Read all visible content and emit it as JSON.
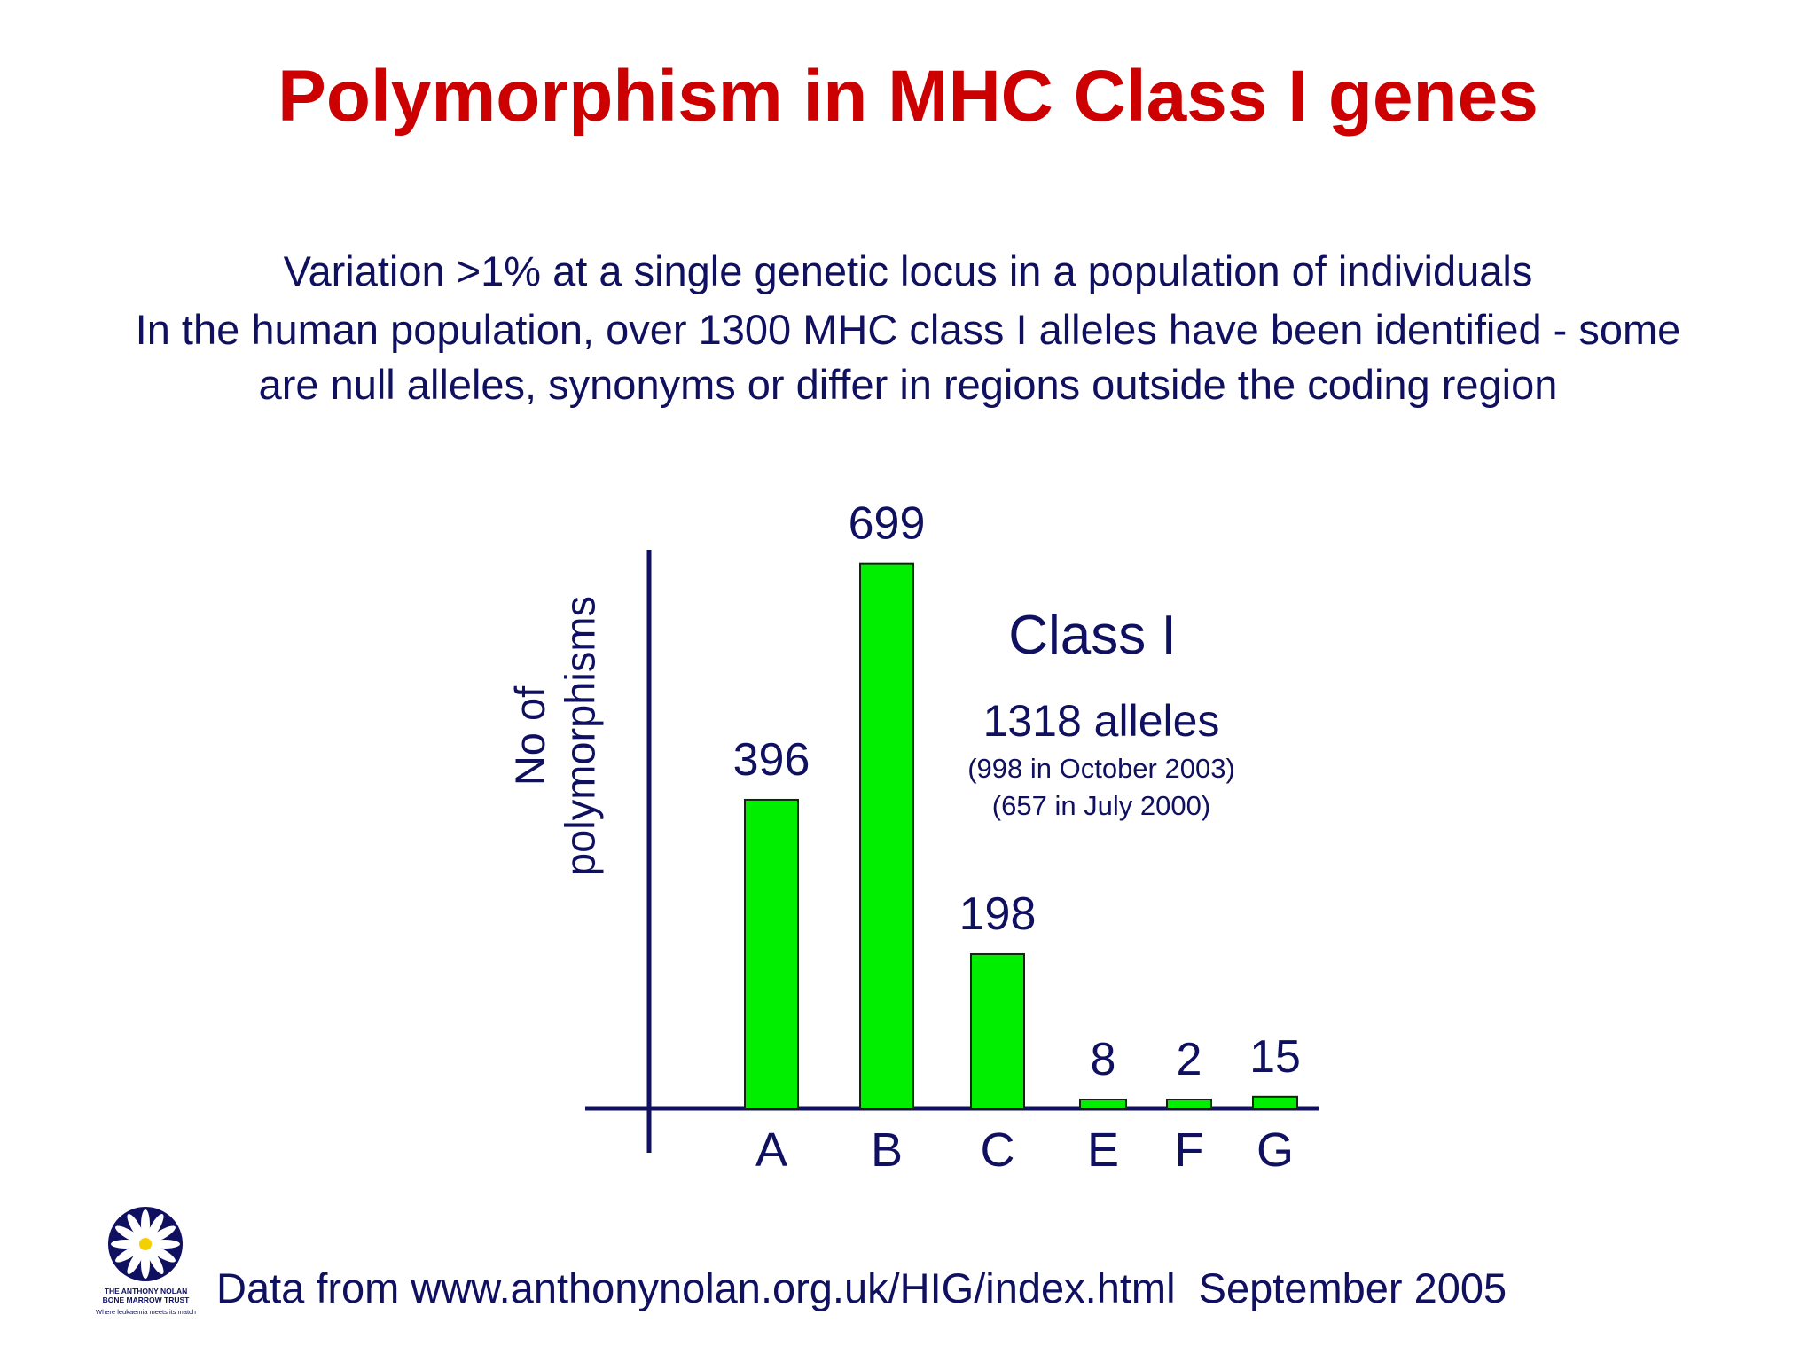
{
  "slide": {
    "title": "Polymorphism in MHC Class I genes",
    "description": [
      "Variation >1% at a single genetic locus in a population of individuals",
      "In the human population, over 1300 MHC class I alleles have been identified - some",
      "are null alleles, synonyms or differ in regions outside the coding region"
    ],
    "footer": "Data from www.anthonynolan.org.uk/HIG/index.html  September 2005",
    "logo": {
      "lines": [
        "THE ANTHONY NOLAN",
        "BONE MARROW TRUST"
      ],
      "tagline": "Where leukaemia meets its match"
    }
  },
  "chart_data": {
    "type": "bar",
    "categories": [
      "A",
      "B",
      "C",
      "E",
      "F",
      "G"
    ],
    "values": [
      396,
      699,
      198,
      8,
      2,
      15
    ],
    "ylabel": [
      "No of",
      "polymorphisms"
    ],
    "ylim": [
      0,
      710
    ],
    "grid": false,
    "annotation": {
      "heading": "Class I",
      "total": "1318 alleles",
      "notes": [
        "(998 in October 2003)",
        "(657 in July 2000)"
      ]
    }
  },
  "colors": {
    "title": "#cc0000",
    "text": "#101060",
    "bar_fill": "#00ee00",
    "bar_stroke": "#0a2a0a",
    "axis": "#101060"
  }
}
